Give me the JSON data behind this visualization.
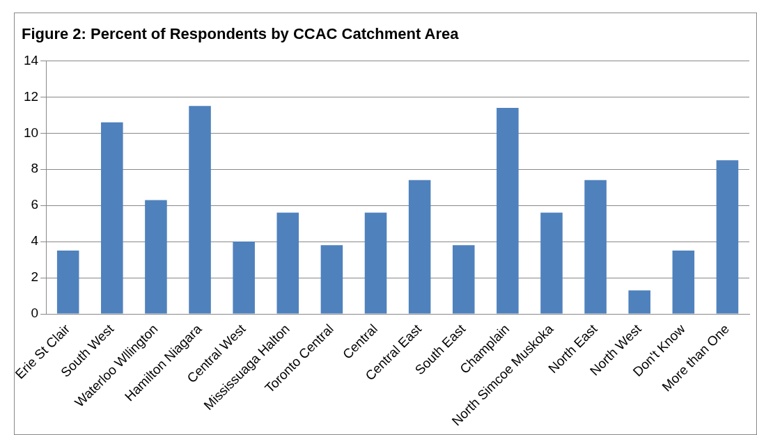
{
  "chart_data": {
    "type": "bar",
    "title": "Figure 2: Percent of Respondents by CCAC Catchment Area",
    "categories": [
      "Erie St Clair",
      "South West",
      "Waterloo Wllington",
      "Hamilton Niagara",
      "Central West",
      "Mississuaga Halton",
      "Toronto Central",
      "Central",
      "Central East",
      "South East",
      "Champlain",
      "North Simcoe Muskoka",
      "North East",
      "North West",
      "Don't Know",
      "More than One"
    ],
    "values": [
      3.5,
      10.6,
      6.3,
      11.5,
      4.0,
      5.6,
      3.8,
      5.6,
      7.4,
      3.8,
      11.4,
      5.6,
      7.4,
      1.3,
      3.5,
      8.5
    ],
    "color": "#4f81bd",
    "ylim": [
      0,
      14
    ],
    "yticks": [
      0,
      2,
      4,
      6,
      8,
      10,
      12,
      14
    ],
    "grid": "y",
    "legend": false
  }
}
